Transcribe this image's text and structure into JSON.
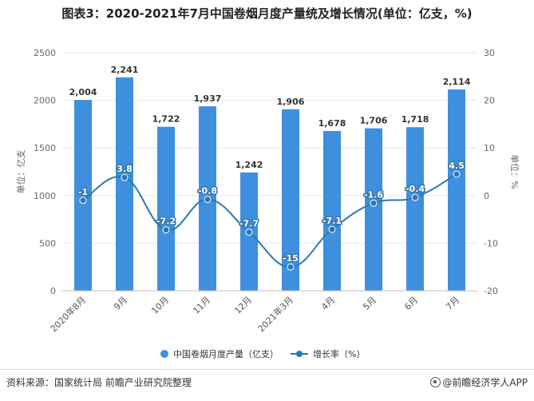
{
  "title": "图表3：2020-2021年7月中国卷烟月度产量统及增长情况(单位：亿支，%)",
  "footer": {
    "source": "资料来源：国家统计局 前瞻产业研究院整理",
    "brand": "@前瞻经济学人APP"
  },
  "colors": {
    "bar": "#3e8fde",
    "line": "#2978b5",
    "grid": "#e6e6e6",
    "axis_text": "#666666"
  },
  "chart_data": {
    "type": "bar",
    "categories": [
      "2020年8月",
      "9月",
      "10月",
      "11月",
      "12月",
      "2021年3月",
      "4月",
      "5月",
      "6月",
      "7月"
    ],
    "series": [
      {
        "name": "中国卷烟月度产量（亿支）",
        "type": "bar",
        "axis": "left",
        "values": [
          2004,
          2241,
          1722,
          1937,
          1242,
          1906,
          1678,
          1706,
          1718,
          2114
        ],
        "labels": [
          "2,004",
          "2,241",
          "1,722",
          "1,937",
          "1,242",
          "1,906",
          "1,678",
          "1,706",
          "1,718",
          "2,114"
        ]
      },
      {
        "name": "增长率（%）",
        "type": "line",
        "axis": "right",
        "values": [
          -1,
          3.8,
          -7.2,
          -0.8,
          -7.7,
          -15,
          -7.1,
          -1.6,
          -0.4,
          4.5
        ],
        "labels": [
          "-1",
          "3.8",
          "-7.2",
          "-0.8",
          "-7.7",
          "-15",
          "-7.1",
          "-1.6",
          "-0.4",
          "4.5"
        ]
      }
    ],
    "ylabel": "单位：亿支",
    "y2label": "单位：%",
    "ylim": [
      0,
      2500
    ],
    "y2lim": [
      -20,
      30
    ],
    "yticks": [
      0,
      500,
      1000,
      1500,
      2000,
      2500
    ],
    "y2ticks": [
      -20,
      -10,
      0,
      10,
      20,
      30
    ],
    "grid": true,
    "legend_position": "bottom"
  }
}
